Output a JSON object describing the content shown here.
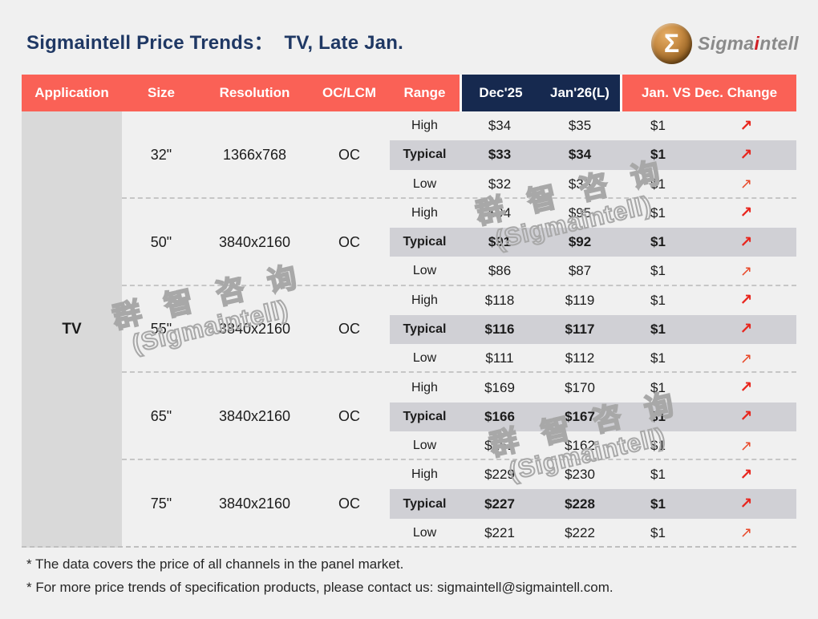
{
  "header": {
    "title": "Sigmaintell Price Trends：  TV, Late Jan.",
    "logo": {
      "symbol": "Σ",
      "brand_pre": "Sigma",
      "brand_accent": "i",
      "brand_post": "ntell"
    }
  },
  "chart_data": {
    "type": "table",
    "title": "Sigmaintell Price Trends： TV, Late Jan.",
    "columns": [
      "Application",
      "Size",
      "Resolution",
      "OC/LCM",
      "Range",
      "Dec'25",
      "Jan'26(L)",
      "Jan. VS Dec. Change"
    ],
    "application": "TV",
    "trend_symbol": "↗",
    "layout_hints": {
      "typical_rows_highlighted": true,
      "prices_in_usd": true,
      "all_changes_upward": true
    },
    "groups": [
      {
        "size": "32\"",
        "resolution": "1366x768",
        "oc_lcm": "OC",
        "rows": [
          {
            "range": "High",
            "dec25": "$34",
            "jan26": "$35",
            "change": "$1",
            "trend": "up"
          },
          {
            "range": "Typical",
            "dec25": "$33",
            "jan26": "$34",
            "change": "$1",
            "trend": "up"
          },
          {
            "range": "Low",
            "dec25": "$32",
            "jan26": "$33",
            "change": "$1",
            "trend": "up"
          }
        ]
      },
      {
        "size": "50\"",
        "resolution": "3840x2160",
        "oc_lcm": "OC",
        "rows": [
          {
            "range": "High",
            "dec25": "$94",
            "jan26": "$95",
            "change": "$1",
            "trend": "up"
          },
          {
            "range": "Typical",
            "dec25": "$91",
            "jan26": "$92",
            "change": "$1",
            "trend": "up"
          },
          {
            "range": "Low",
            "dec25": "$86",
            "jan26": "$87",
            "change": "$1",
            "trend": "up"
          }
        ]
      },
      {
        "size": "55\"",
        "resolution": "3840x2160",
        "oc_lcm": "OC",
        "rows": [
          {
            "range": "High",
            "dec25": "$118",
            "jan26": "$119",
            "change": "$1",
            "trend": "up"
          },
          {
            "range": "Typical",
            "dec25": "$116",
            "jan26": "$117",
            "change": "$1",
            "trend": "up"
          },
          {
            "range": "Low",
            "dec25": "$111",
            "jan26": "$112",
            "change": "$1",
            "trend": "up"
          }
        ]
      },
      {
        "size": "65\"",
        "resolution": "3840x2160",
        "oc_lcm": "OC",
        "rows": [
          {
            "range": "High",
            "dec25": "$169",
            "jan26": "$170",
            "change": "$1",
            "trend": "up"
          },
          {
            "range": "Typical",
            "dec25": "$166",
            "jan26": "$167",
            "change": "$1",
            "trend": "up"
          },
          {
            "range": "Low",
            "dec25": "$161",
            "jan26": "$162",
            "change": "$1",
            "trend": "up"
          }
        ]
      },
      {
        "size": "75\"",
        "resolution": "3840x2160",
        "oc_lcm": "OC",
        "rows": [
          {
            "range": "High",
            "dec25": "$229",
            "jan26": "$230",
            "change": "$1",
            "trend": "up"
          },
          {
            "range": "Typical",
            "dec25": "$227",
            "jan26": "$228",
            "change": "$1",
            "trend": "up"
          },
          {
            "range": "Low",
            "dec25": "$221",
            "jan26": "$222",
            "change": "$1",
            "trend": "up"
          }
        ]
      }
    ]
  },
  "watermark": {
    "line1": "群 智 咨 询",
    "line2": "(Sigmaintell)"
  },
  "footnotes": [
    "* The data covers the price of all channels in the panel market.",
    "* For more price trends of specification products, please contact us: sigmaintell@sigmaintell.com."
  ],
  "colors": {
    "background": "#f0f0f0",
    "header_red": "#fa6156",
    "header_navy": "#16294f",
    "title_navy": "#1f3864",
    "application_column_gray": "#d9d9d9",
    "typical_band_gray": "#d0d0d5",
    "arrow_red": "#e8251d",
    "watermark_gray": "#a8a8a8",
    "logo_bronze": "#8f5d20",
    "logo_accent_red": "#cf2026"
  }
}
